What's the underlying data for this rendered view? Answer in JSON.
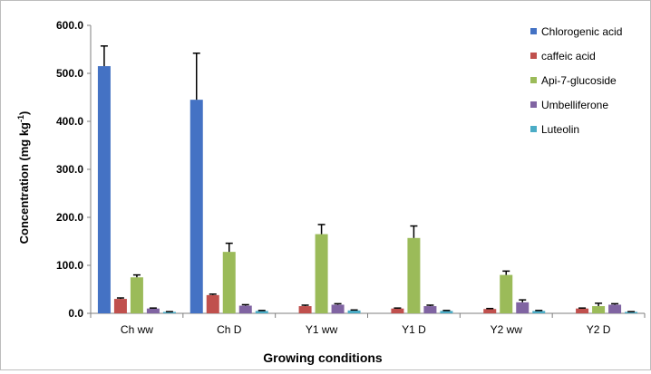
{
  "chart_data": {
    "type": "bar",
    "title": "",
    "xlabel": "Growing conditions",
    "ylabel": "Concentration (mg kg",
    "ylabel_superscript": "-1",
    "ylabel_suffix": ")",
    "ylim": [
      0,
      600
    ],
    "yticks": [
      "0.0",
      "100.0",
      "200.0",
      "300.0",
      "400.0",
      "500.0",
      "600.0"
    ],
    "ytick_values": [
      0,
      100,
      200,
      300,
      400,
      500,
      600
    ],
    "grid": false,
    "legend_position": "top-right",
    "categories": [
      "Ch ww",
      "Ch D",
      "Y1 ww",
      "Y1 D",
      "Y2 ww",
      "Y2 D"
    ],
    "series": [
      {
        "name": "Chlorogenic acid",
        "color": "#4472c4",
        "values": [
          515,
          445,
          0,
          0,
          0,
          0
        ],
        "errors": [
          42,
          97,
          0,
          0,
          0,
          0
        ]
      },
      {
        "name": "caffeic acid",
        "color": "#c0504d",
        "values": [
          30,
          38,
          15,
          10,
          9,
          10
        ],
        "errors": [
          2,
          2,
          2,
          1,
          1,
          1
        ]
      },
      {
        "name": "Api-7-glucoside",
        "color": "#9bbb59",
        "values": [
          75,
          128,
          165,
          157,
          80,
          15
        ],
        "errors": [
          5,
          18,
          20,
          25,
          8,
          6
        ]
      },
      {
        "name": "Umbelliferone",
        "color": "#8064a2",
        "values": [
          10,
          16,
          18,
          15,
          23,
          18
        ],
        "errors": [
          1,
          2,
          2,
          2,
          5,
          2
        ]
      },
      {
        "name": "Luteolin",
        "color": "#4bacc6",
        "values": [
          3,
          5,
          6,
          5,
          5,
          3
        ],
        "errors": [
          0.5,
          1,
          1,
          1,
          1,
          0.5
        ]
      }
    ]
  }
}
